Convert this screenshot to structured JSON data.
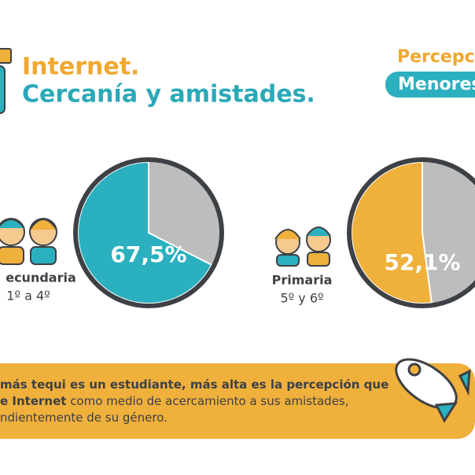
{
  "header": {
    "title": "Internet.",
    "subtitle": "Cercanía y amistades.",
    "right_title": "Percepc",
    "right_badge": "Menores"
  },
  "chart_data": [
    {
      "type": "pie",
      "categories": [
        "ecundaria"
      ],
      "category_note": "1º a 4º",
      "values": [
        67.5
      ],
      "value_labels": [
        "67,5%"
      ],
      "color": "#2bb0bf"
    },
    {
      "type": "pie",
      "categories": [
        "Primaria"
      ],
      "category_note": "5º y 6º",
      "values": [
        52.1
      ],
      "value_labels": [
        "52,1%"
      ],
      "color": "#f0b03c"
    }
  ],
  "footer": {
    "lines": [
      [
        {
          "text": "más tequi es un estudiante, más alta es la percepción que",
          "bold": true
        }
      ],
      [
        {
          "text": "e Internet",
          "bold": true
        },
        {
          "text": " como medio de acercamiento a sus amistades,",
          "bold": false
        }
      ],
      [
        {
          "text": "ndientemente de su género.",
          "bold": false
        }
      ]
    ]
  }
}
